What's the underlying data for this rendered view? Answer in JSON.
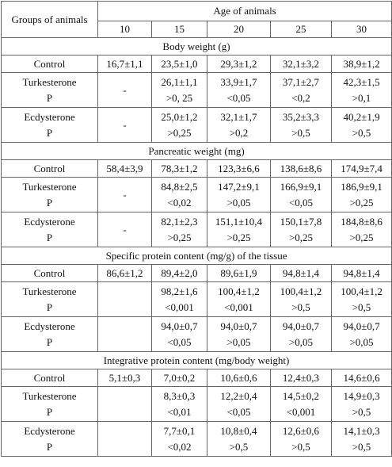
{
  "table": {
    "header": {
      "groups": "Groups of animals",
      "age": "Age of animals",
      "ages": [
        "10",
        "15",
        "20",
        "25",
        "30"
      ]
    },
    "sections": [
      {
        "title": "Body weight (g)",
        "rows": [
          {
            "group": "Control",
            "values": [
              "16,7±1,1",
              "23,5±1,0",
              "29,3±1,2",
              "32,1±3,2",
              "38,9±1,2"
            ]
          },
          {
            "group": "Turkesterone",
            "p_label": "P",
            "values": [
              "-",
              "26,1±1,1",
              "33,9±1,7",
              "37,1±2,7",
              "42,3±1,5"
            ],
            "p_values": [
              null,
              ">0, 25",
              "<0,05",
              "<0,2",
              ">0,1"
            ]
          },
          {
            "group": "Ecdysterone",
            "p_label": "P",
            "values": [
              "-",
              "25,0±1,2",
              "32,1±1,7",
              "35,2±3,3",
              "40,2±1,9"
            ],
            "p_values": [
              null,
              ">0,25",
              ">0,2",
              ">0,5",
              ">0,5"
            ]
          }
        ]
      },
      {
        "title": "Pancreatic weight (mg)",
        "rows": [
          {
            "group": "Control",
            "values": [
              "58,4±3,9",
              "78,3±1,2",
              "123,3±6,6",
              "138,6±8,6",
              "174,9±7,4"
            ]
          },
          {
            "group": "Turkesterone",
            "p_label": "P",
            "values": [
              "-",
              "84,8±2,5",
              "147,2±9,1",
              "166,9±9,1",
              "186,9±9,1"
            ],
            "p_values": [
              null,
              "<0,02",
              ">0,05",
              "<0,05",
              ">0,25"
            ]
          },
          {
            "group": "Ecdysterone",
            "p_label": "P",
            "values": [
              "-",
              "82,1±2,3",
              "151,1±10,4",
              "150,1±7,8",
              "184,8±8,6"
            ],
            "p_values": [
              null,
              ">0,25",
              ">0,25",
              ">0,25",
              ">0,25"
            ]
          }
        ]
      },
      {
        "title": "Specific protein content (mg/g) of the tissue",
        "rows": [
          {
            "group": "Control",
            "values": [
              "86,6±1,2",
              "89,4±2,0",
              "89,6±1,9",
              "94,8±1,4",
              "94,8±1,4"
            ]
          },
          {
            "group": "Turkesterone",
            "p_label": "P",
            "values": [
              null,
              "98,2±1,6",
              "100,4±1,2",
              "100,4±1,2",
              "100,4±1,2"
            ],
            "p_values": [
              null,
              "<0,001",
              "<0,001",
              ">0,5",
              ">0,5"
            ]
          },
          {
            "group": "Ecdysterone",
            "p_label": "P",
            "values": [
              null,
              "94,0±0,7",
              "94,0±0,7",
              "94,0±0,7",
              "94,0±0,7"
            ],
            "p_values": [
              null,
              "<0,05",
              ">0,05",
              ">0,05",
              ">0,05"
            ]
          }
        ]
      },
      {
        "title": "Integrative protein content (mg/body weight)",
        "rows": [
          {
            "group": "Control",
            "values": [
              "5,1±0,3",
              "7,0±0,2",
              "10,6±0,6",
              "12,4±0,3",
              "14,6±0,6"
            ]
          },
          {
            "group": "Turkesterone",
            "p_label": "P",
            "values": [
              null,
              "8,3±0,3",
              "12,2±0,4",
              "14,5±0,2",
              "14,9±0,3"
            ],
            "p_values": [
              null,
              "<0,01",
              "<0,05",
              "<0,001",
              ">0,5"
            ]
          },
          {
            "group": "Ecdysterone",
            "p_label": "P",
            "values": [
              null,
              "7,7±0,1",
              "10,8±0,4",
              "12,6±0,6",
              "14,1±0,3"
            ],
            "p_values": [
              null,
              "<0,02",
              ">0,5",
              ">0,5",
              ">0,5"
            ]
          }
        ]
      }
    ]
  }
}
